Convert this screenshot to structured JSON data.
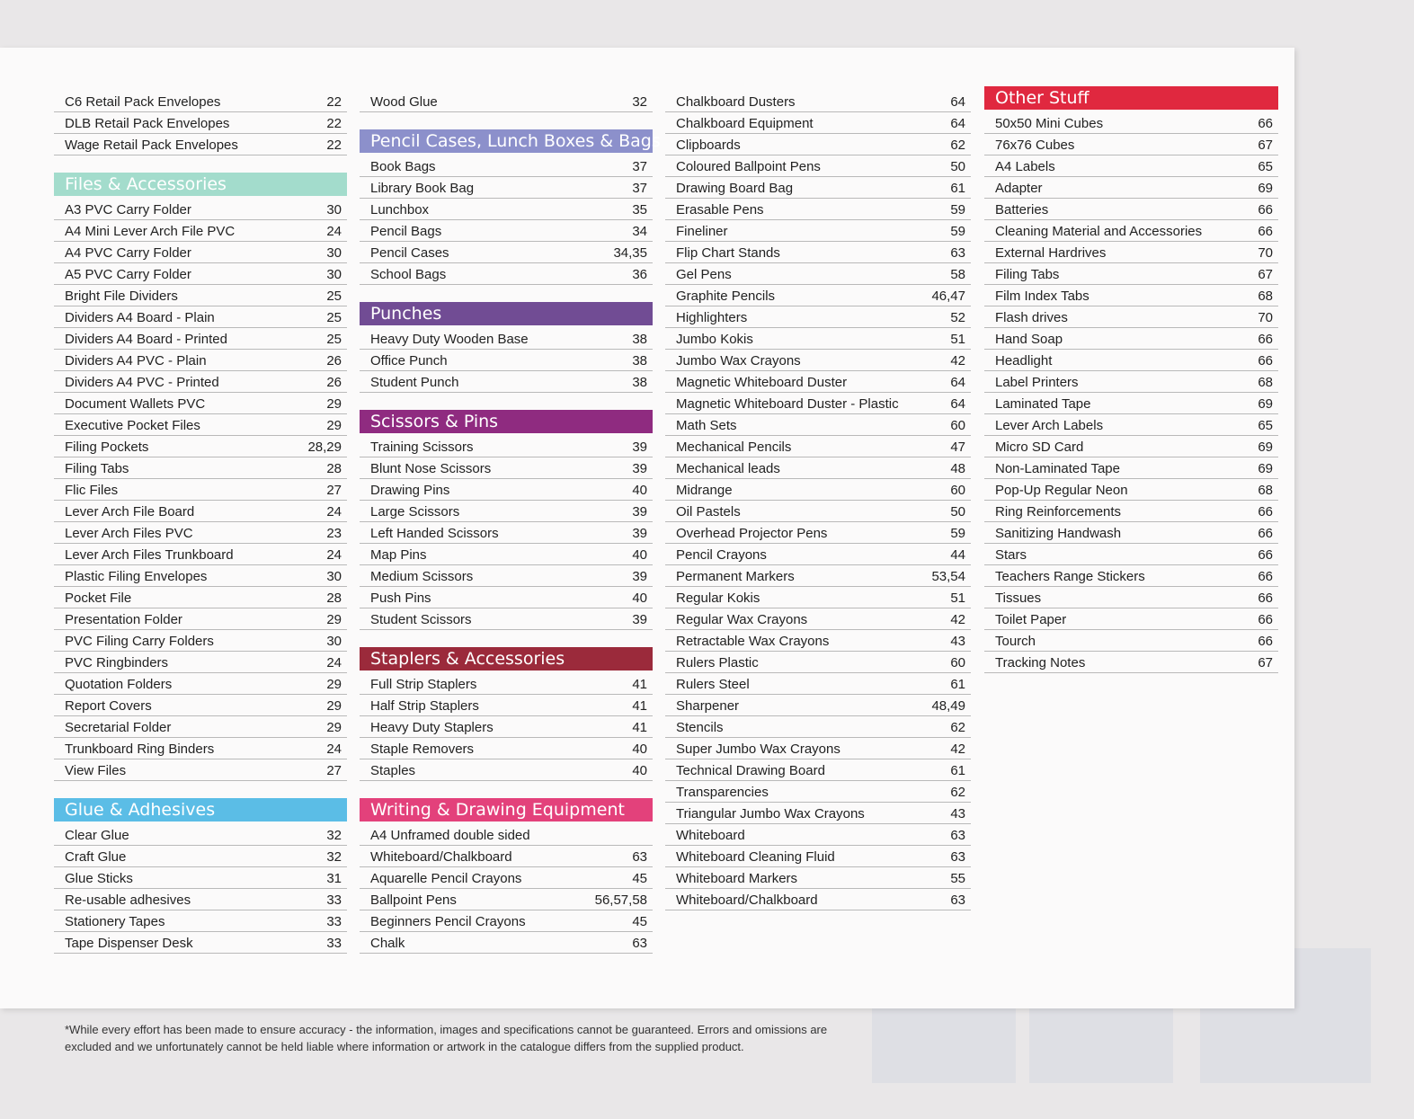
{
  "columns": [
    {
      "sections": [
        {
          "items": [
            {
              "name": "C6 Retail Pack Envelopes",
              "page": "22"
            },
            {
              "name": "DLB Retail Pack Envelopes",
              "page": "22"
            },
            {
              "name": "Wage Retail Pack Envelopes",
              "page": "22"
            }
          ]
        },
        {
          "heading": "Files & Accessories",
          "color": "#a3dccc",
          "items": [
            {
              "name": "A3 PVC Carry Folder",
              "page": "30"
            },
            {
              "name": "A4 Mini Lever Arch File PVC",
              "page": "24"
            },
            {
              "name": "A4 PVC Carry Folder",
              "page": "30"
            },
            {
              "name": "A5 PVC Carry Folder",
              "page": "30"
            },
            {
              "name": "Bright File Dividers",
              "page": "25"
            },
            {
              "name": "Dividers A4 Board - Plain",
              "page": "25"
            },
            {
              "name": "Dividers A4 Board - Printed",
              "page": "25"
            },
            {
              "name": "Dividers A4 PVC - Plain",
              "page": "26"
            },
            {
              "name": "Dividers A4 PVC - Printed",
              "page": "26"
            },
            {
              "name": "Document Wallets PVC",
              "page": "29"
            },
            {
              "name": "Executive Pocket Files",
              "page": "29"
            },
            {
              "name": "Filing Pockets",
              "page": "28,29"
            },
            {
              "name": "Filing Tabs",
              "page": "28"
            },
            {
              "name": "Flic Files",
              "page": "27"
            },
            {
              "name": "Lever Arch File Board",
              "page": "24"
            },
            {
              "name": "Lever Arch Files PVC",
              "page": "23"
            },
            {
              "name": "Lever Arch Files Trunkboard",
              "page": "24"
            },
            {
              "name": "Plastic Filing Envelopes",
              "page": "30"
            },
            {
              "name": "Pocket File",
              "page": "28"
            },
            {
              "name": "Presentation Folder",
              "page": "29"
            },
            {
              "name": "PVC Filing Carry Folders",
              "page": "30"
            },
            {
              "name": "PVC Ringbinders",
              "page": "24"
            },
            {
              "name": "Quotation Folders",
              "page": "29"
            },
            {
              "name": "Report Covers",
              "page": "29"
            },
            {
              "name": "Secretarial Folder",
              "page": "29"
            },
            {
              "name": "Trunkboard Ring Binders",
              "page": "24"
            },
            {
              "name": "View Files",
              "page": "27"
            }
          ]
        },
        {
          "heading": "Glue & Adhesives",
          "color": "#5bbde6",
          "items": [
            {
              "name": "Clear Glue",
              "page": "32"
            },
            {
              "name": "Craft Glue",
              "page": "32"
            },
            {
              "name": "Glue Sticks",
              "page": "31"
            },
            {
              "name": "Re-usable adhesives",
              "page": "33"
            },
            {
              "name": "Stationery Tapes",
              "page": "33"
            },
            {
              "name": "Tape Dispenser Desk",
              "page": "33"
            }
          ]
        }
      ]
    },
    {
      "sections": [
        {
          "items": [
            {
              "name": "Wood Glue",
              "page": "32"
            }
          ]
        },
        {
          "heading": "Pencil Cases, Lunch Boxes & Bags",
          "color": "#8c90cb",
          "items": [
            {
              "name": "Book Bags",
              "page": "37"
            },
            {
              "name": "Library Book Bag",
              "page": "37"
            },
            {
              "name": "Lunchbox",
              "page": "35"
            },
            {
              "name": "Pencil Bags",
              "page": "34"
            },
            {
              "name": "Pencil Cases",
              "page": "34,35"
            },
            {
              "name": "School Bags",
              "page": "36"
            }
          ]
        },
        {
          "heading": "Punches",
          "color": "#714c94",
          "items": [
            {
              "name": "Heavy Duty Wooden Base",
              "page": "38"
            },
            {
              "name": "Office Punch",
              "page": "38"
            },
            {
              "name": "Student Punch",
              "page": "38"
            }
          ]
        },
        {
          "heading": "Scissors & Pins",
          "color": "#8f2b80",
          "items": [
            {
              "name": "Training Scissors",
              "page": "39"
            },
            {
              "name": "Blunt Nose Scissors",
              "page": "39"
            },
            {
              "name": "Drawing Pins",
              "page": "40"
            },
            {
              "name": "Large Scissors",
              "page": "39"
            },
            {
              "name": "Left Handed Scissors",
              "page": "39"
            },
            {
              "name": "Map Pins",
              "page": "40"
            },
            {
              "name": "Medium Scissors",
              "page": "39"
            },
            {
              "name": "Push Pins",
              "page": "40"
            },
            {
              "name": "Student Scissors",
              "page": "39"
            }
          ]
        },
        {
          "heading": "Staplers & Accessories",
          "color": "#9b2a3b",
          "items": [
            {
              "name": "Full Strip Staplers",
              "page": "41"
            },
            {
              "name": "Half Strip Staplers",
              "page": "41"
            },
            {
              "name": "Heavy Duty Staplers",
              "page": "41"
            },
            {
              "name": "Staple Removers",
              "page": "40"
            },
            {
              "name": "Staples",
              "page": "40"
            }
          ]
        },
        {
          "heading": "Writing & Drawing Equipment",
          "color": "#e3417b",
          "items": [
            {
              "name": "A4 Unframed double sided"
            },
            {
              "name": "Whiteboard/Chalkboard",
              "page": "63"
            },
            {
              "name": "Aquarelle Pencil Crayons",
              "page": "45"
            },
            {
              "name": "Ballpoint Pens",
              "page": "56,57,58"
            },
            {
              "name": "Beginners Pencil Crayons",
              "page": "45"
            },
            {
              "name": "Chalk",
              "page": "63"
            }
          ]
        }
      ]
    },
    {
      "sections": [
        {
          "items": [
            {
              "name": "Chalkboard Dusters",
              "page": "64"
            },
            {
              "name": "Chalkboard Equipment",
              "page": "64"
            },
            {
              "name": "Clipboards",
              "page": "62"
            },
            {
              "name": "Coloured Ballpoint Pens",
              "page": "50"
            },
            {
              "name": "Drawing Board Bag",
              "page": "61"
            },
            {
              "name": "Erasable Pens",
              "page": "59"
            },
            {
              "name": "Fineliner",
              "page": "59"
            },
            {
              "name": "Flip Chart Stands",
              "page": "63"
            },
            {
              "name": "Gel Pens",
              "page": "58"
            },
            {
              "name": "Graphite Pencils",
              "page": "46,47"
            },
            {
              "name": "Highlighters",
              "page": "52"
            },
            {
              "name": "Jumbo Kokis",
              "page": "51"
            },
            {
              "name": "Jumbo Wax Crayons",
              "page": "42"
            },
            {
              "name": "Magnetic Whiteboard Duster",
              "page": "64"
            },
            {
              "name": "Magnetic Whiteboard Duster - Plastic",
              "page": "64"
            },
            {
              "name": "Math Sets",
              "page": "60"
            },
            {
              "name": "Mechanical Pencils",
              "page": "47"
            },
            {
              "name": "Mechanical leads",
              "page": "48"
            },
            {
              "name": "Midrange",
              "page": "60"
            },
            {
              "name": "Oil Pastels",
              "page": "50"
            },
            {
              "name": "Overhead Projector Pens",
              "page": "59"
            },
            {
              "name": "Pencil Crayons",
              "page": "44"
            },
            {
              "name": "Permanent Markers",
              "page": "53,54"
            },
            {
              "name": "Regular Kokis",
              "page": "51"
            },
            {
              "name": "Regular Wax Crayons",
              "page": "42"
            },
            {
              "name": "Retractable Wax Crayons",
              "page": "43"
            },
            {
              "name": "Rulers Plastic",
              "page": "60"
            },
            {
              "name": "Rulers Steel",
              "page": "61"
            },
            {
              "name": "Sharpener",
              "page": "48,49"
            },
            {
              "name": "Stencils",
              "page": "62"
            },
            {
              "name": "Super Jumbo Wax Crayons",
              "page": "42"
            },
            {
              "name": "Technical Drawing Board",
              "page": "61"
            },
            {
              "name": "Transparencies",
              "page": "62"
            },
            {
              "name": "Triangular Jumbo Wax Crayons",
              "page": "43"
            },
            {
              "name": "Whiteboard",
              "page": "63"
            },
            {
              "name": "Whiteboard Cleaning Fluid",
              "page": "63"
            },
            {
              "name": "Whiteboard Markers",
              "page": "55"
            },
            {
              "name": "Whiteboard/Chalkboard",
              "page": "63"
            }
          ]
        }
      ]
    },
    {
      "sections": [
        {
          "heading": "Other Stuff",
          "color": "#e0283f",
          "items": [
            {
              "name": "50x50 Mini Cubes",
              "page": "66"
            },
            {
              "name": "76x76 Cubes",
              "page": "67"
            },
            {
              "name": "A4 Labels",
              "page": "65"
            },
            {
              "name": "Adapter",
              "page": "69"
            },
            {
              "name": "Batteries",
              "page": "66"
            },
            {
              "name": "Cleaning Material and Accessories",
              "page": "66"
            },
            {
              "name": "External Hardrives",
              "page": "70"
            },
            {
              "name": "Filing Tabs",
              "page": "67"
            },
            {
              "name": "Film Index Tabs",
              "page": "68"
            },
            {
              "name": "Flash drives",
              "page": "70"
            },
            {
              "name": "Hand Soap",
              "page": "66"
            },
            {
              "name": "Headlight",
              "page": "66"
            },
            {
              "name": "Label Printers",
              "page": "68"
            },
            {
              "name": "Laminated Tape",
              "page": "69"
            },
            {
              "name": "Lever Arch Labels",
              "page": "65"
            },
            {
              "name": "Micro SD Card",
              "page": "69"
            },
            {
              "name": "Non-Laminated Tape",
              "page": "69"
            },
            {
              "name": "Pop-Up Regular Neon",
              "page": "68"
            },
            {
              "name": "Ring Reinforcements",
              "page": "66"
            },
            {
              "name": "Sanitizing Handwash",
              "page": "66"
            },
            {
              "name": "Stars",
              "page": "66"
            },
            {
              "name": "Teachers Range Stickers",
              "page": "66"
            },
            {
              "name": "Tissues",
              "page": "66"
            },
            {
              "name": "Toilet Paper",
              "page": "66"
            },
            {
              "name": "Tourch",
              "page": "66"
            },
            {
              "name": "Tracking Notes",
              "page": "67"
            }
          ]
        }
      ]
    }
  ],
  "footer": "*While every effort has been made to ensure accuracy - the information, images and specifications cannot be guaranteed. Errors and omissions are excluded and we unfortunately cannot be held liable where information or artwork in the catalogue differs from the supplied product."
}
